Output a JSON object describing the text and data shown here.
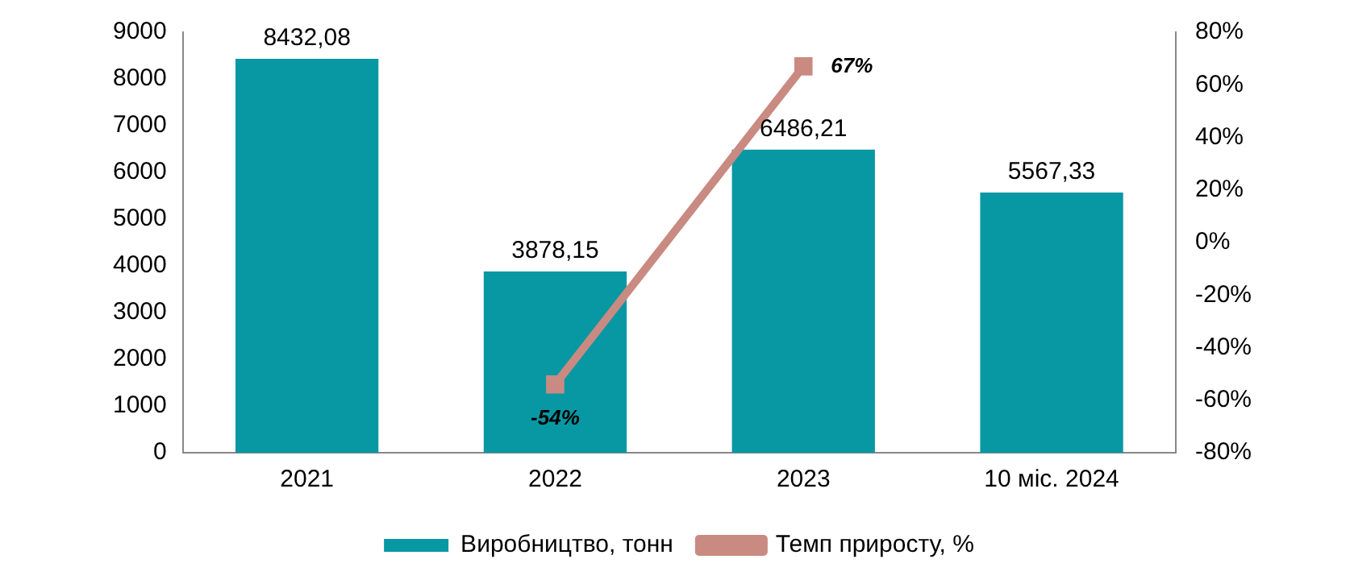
{
  "chart_data": {
    "type": "bar",
    "categories": [
      "2021",
      "2022",
      "2023",
      "10 міс. 2024"
    ],
    "series": [
      {
        "name": "Виробництво, тонн",
        "color": "#0898a4",
        "values": [
          8432.08,
          3878.15,
          6486.21,
          5567.33
        ],
        "value_labels": [
          "8432,08",
          "3878,15",
          "6486,21",
          "5567,33"
        ]
      },
      {
        "name": "Темп приросту, %",
        "type": "line",
        "axis": "y2",
        "color": "#c98a82",
        "values": [
          null,
          -54,
          67,
          null
        ],
        "value_labels": [
          null,
          "-54%",
          "67%",
          null
        ]
      }
    ],
    "ylim": [
      0,
      9000
    ],
    "yticks": [
      0,
      1000,
      2000,
      3000,
      4000,
      5000,
      6000,
      7000,
      8000,
      9000
    ],
    "y2lim": [
      -80,
      80
    ],
    "y2ticks": [
      {
        "value": -80,
        "label": "-80%"
      },
      {
        "value": -60,
        "label": "-60%"
      },
      {
        "value": -40,
        "label": "-40%"
      },
      {
        "value": -20,
        "label": "-20%"
      },
      {
        "value": 0,
        "label": "0%"
      },
      {
        "value": 20,
        "label": "20%"
      },
      {
        "value": 40,
        "label": "40%"
      },
      {
        "value": 60,
        "label": "60%"
      },
      {
        "value": 80,
        "label": "80%"
      }
    ],
    "grid": false,
    "legend": "bottom",
    "marker": "square",
    "line_style": "solid"
  }
}
